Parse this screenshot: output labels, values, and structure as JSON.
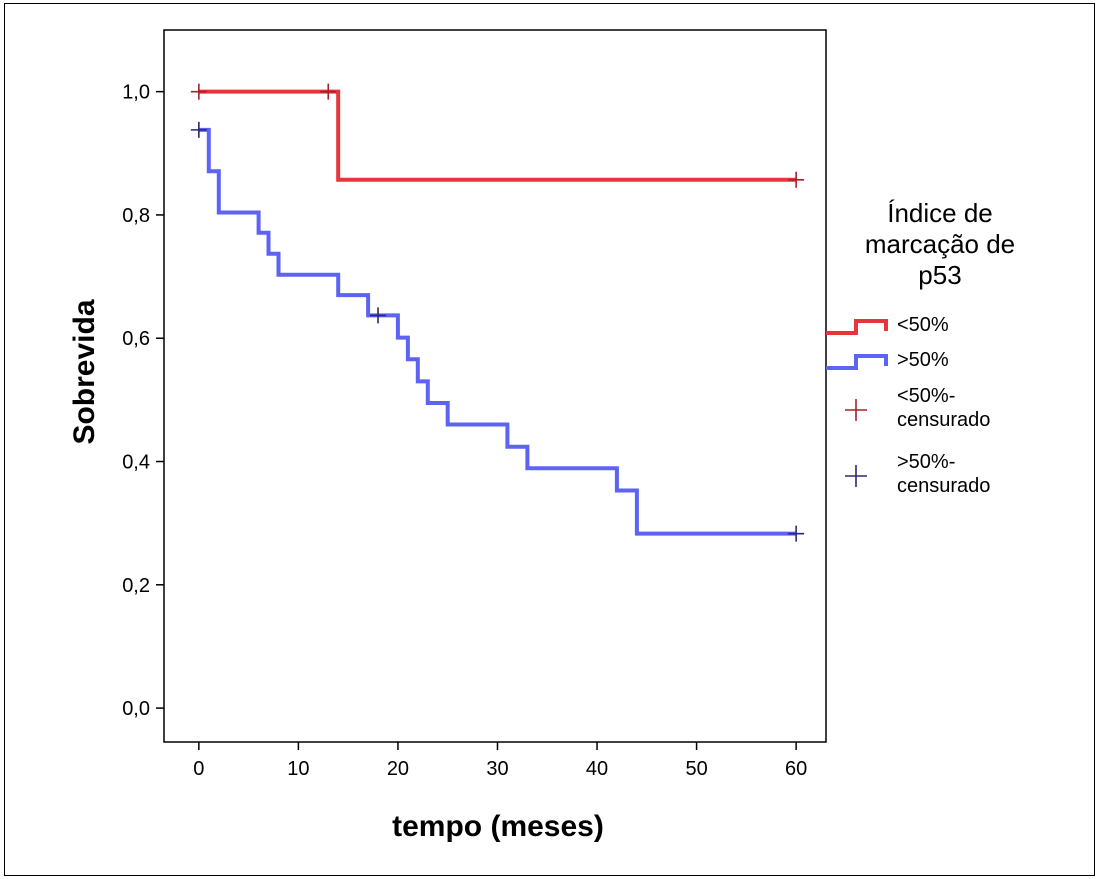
{
  "chart_data": {
    "type": "line",
    "title": "",
    "xlabel": "tempo (meses)",
    "ylabel": "Sobrevida",
    "xlim": [
      -3.5,
      63
    ],
    "ylim": [
      -0.055,
      1.1
    ],
    "xticks": [
      0,
      10,
      20,
      30,
      40,
      50,
      60
    ],
    "xtick_labels": [
      "0",
      "10",
      "20",
      "30",
      "40",
      "50",
      "60"
    ],
    "yticks": [
      0.0,
      0.2,
      0.4,
      0.6,
      0.8,
      1.0
    ],
    "ytick_labels": [
      "0,0",
      "0,2",
      "0,4",
      "0,6",
      "0,8",
      "1,0"
    ],
    "grid": false,
    "legend_position": "right",
    "legend_title": "Índice de marcação de p53",
    "legend_title_lines": [
      "Índice de",
      "marcação de",
      "p53"
    ],
    "series": [
      {
        "name": "<50%",
        "color": "#e8343c",
        "step": [
          [
            0,
            1.0
          ],
          [
            14,
            1.0
          ],
          [
            14,
            0.857
          ],
          [
            60,
            0.857
          ]
        ],
        "censored": [
          [
            0,
            1.0
          ],
          [
            13,
            1.0
          ],
          [
            60,
            0.857
          ]
        ]
      },
      {
        "name": ">50%",
        "color": "#5d63f5",
        "step": [
          [
            0,
            0.938
          ],
          [
            1,
            0.938
          ],
          [
            1,
            0.871
          ],
          [
            2,
            0.871
          ],
          [
            2,
            0.804
          ],
          [
            6,
            0.804
          ],
          [
            6,
            0.771
          ],
          [
            7,
            0.771
          ],
          [
            7,
            0.737
          ],
          [
            8,
            0.737
          ],
          [
            8,
            0.703
          ],
          [
            14,
            0.703
          ],
          [
            14,
            0.67
          ],
          [
            17,
            0.67
          ],
          [
            17,
            0.637
          ],
          [
            20,
            0.637
          ],
          [
            20,
            0.601
          ],
          [
            21,
            0.601
          ],
          [
            21,
            0.566
          ],
          [
            22,
            0.566
          ],
          [
            22,
            0.53
          ],
          [
            23,
            0.53
          ],
          [
            23,
            0.495
          ],
          [
            25,
            0.495
          ],
          [
            25,
            0.46
          ],
          [
            31,
            0.46
          ],
          [
            31,
            0.424
          ],
          [
            33,
            0.424
          ],
          [
            33,
            0.389
          ],
          [
            42,
            0.389
          ],
          [
            42,
            0.353
          ],
          [
            44,
            0.353
          ],
          [
            44,
            0.283
          ],
          [
            60,
            0.283
          ]
        ],
        "censored": [
          [
            0,
            0.938
          ],
          [
            18,
            0.637
          ],
          [
            60,
            0.283
          ]
        ]
      }
    ],
    "legend_entries": [
      {
        "label": "<50%",
        "kind": "line",
        "color": "#e8343c"
      },
      {
        "label": ">50%",
        "kind": "line",
        "color": "#5d63f5"
      },
      {
        "label_lines": [
          "<50%-",
          "censurado"
        ],
        "kind": "marker",
        "color": "#a5212a"
      },
      {
        "label_lines": [
          ">50%-",
          "censurado"
        ],
        "kind": "marker",
        "color": "#2a2a6e"
      }
    ],
    "censor_colors": {
      "<50%": "#a5212a",
      ">50%": "#2a2a6e"
    }
  }
}
